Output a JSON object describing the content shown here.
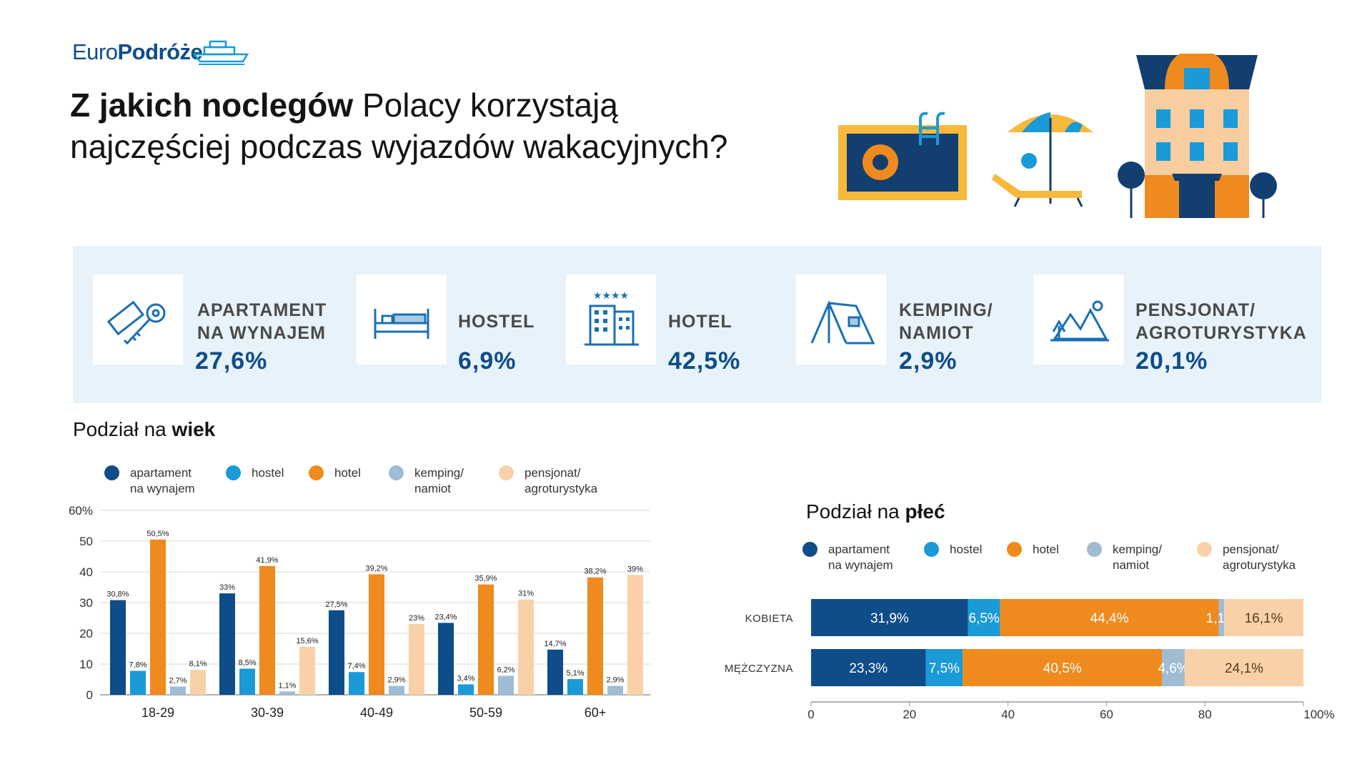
{
  "logo": {
    "part1": "Euro",
    "part2": "Podróże"
  },
  "headline": {
    "bold": "Z jakich noclegów",
    "rest_line1": " Polacy korzystają",
    "line2": "najczęściej podczas wyjazdów wakacyjnych?"
  },
  "summary": [
    {
      "label_line1": "APARTAMENT",
      "label_line2": "NA WYNAJEM",
      "value": "27,6%",
      "icon": "key-icon"
    },
    {
      "label_line1": "HOSTEL",
      "label_line2": "",
      "value": "6,9%",
      "icon": "bed-icon"
    },
    {
      "label_line1": "HOTEL",
      "label_line2": "",
      "value": "42,5%",
      "icon": "hotel-building-icon"
    },
    {
      "label_line1": "KEMPING/",
      "label_line2": "NAMIOT",
      "value": "2,9%",
      "icon": "tent-icon"
    },
    {
      "label_line1": "PENSJONAT/",
      "label_line2": "AGROTURYSTYKA",
      "value": "20,1%",
      "icon": "mountains-icon"
    }
  ],
  "age_section": {
    "title_prefix": "Podział na ",
    "title_bold": "wiek"
  },
  "gender_section": {
    "title_prefix": "Podział na ",
    "title_bold": "płeć"
  },
  "legend": [
    {
      "line1": "apartament",
      "line2": "na wynajem",
      "color": "#0f4c8a"
    },
    {
      "line1": "hostel",
      "line2": "",
      "color": "#1a9ad6"
    },
    {
      "line1": "hotel",
      "line2": "",
      "color": "#ef8a1e"
    },
    {
      "line1": "kemping/",
      "line2": "namiot",
      "color": "#9fbcd3"
    },
    {
      "line1": "pensjonat/",
      "line2": "agroturystyka",
      "color": "#f8d1a8"
    }
  ],
  "chart_data": [
    {
      "type": "bar",
      "title": "Podział na wiek",
      "categories": [
        "18-29",
        "30-39",
        "40-49",
        "50-59",
        "60+"
      ],
      "series": [
        {
          "name": "apartament na wynajem",
          "color": "#0f4c8a",
          "values": [
            30.8,
            33,
            27.5,
            23.4,
            14.7
          ],
          "labels": [
            "30,8%",
            "33%",
            "27,5%",
            "23,4%",
            "14,7%"
          ]
        },
        {
          "name": "hostel",
          "color": "#1a9ad6",
          "values": [
            7.8,
            8.5,
            7.4,
            3.4,
            5.1
          ],
          "labels": [
            "7,8%",
            "8,5%",
            "7,4%",
            "3,4%",
            "5,1%"
          ]
        },
        {
          "name": "hotel",
          "color": "#ef8a1e",
          "values": [
            50.5,
            41.9,
            39.2,
            35.9,
            38.2
          ],
          "labels": [
            "50,5%",
            "41,9%",
            "39,2%",
            "35,9%",
            "38,2%"
          ]
        },
        {
          "name": "kemping/namiot",
          "color": "#9fbcd3",
          "values": [
            2.7,
            1.1,
            2.9,
            6.2,
            2.9
          ],
          "labels": [
            "2,7%",
            "1,1%",
            "2,9%",
            "6,2%",
            "2,9%"
          ]
        },
        {
          "name": "pensjonat/agroturystyka",
          "color": "#f8d1a8",
          "values": [
            8.1,
            15.6,
            23,
            31,
            39
          ],
          "labels": [
            "8,1%",
            "15,6%",
            "23%",
            "31%",
            "39%"
          ]
        }
      ],
      "ylim": [
        0,
        60
      ],
      "yticks": [
        "0",
        "10",
        "20",
        "30",
        "40",
        "50",
        "60%"
      ],
      "grid": true
    },
    {
      "type": "bar",
      "orientation": "horizontal",
      "stacked": true,
      "title": "Podział na płeć",
      "categories": [
        "KOBIETA",
        "MĘŻCZYZNA"
      ],
      "series": [
        {
          "name": "apartament na wynajem",
          "color": "#0f4c8a",
          "values": [
            31.9,
            23.3
          ],
          "labels": [
            "31,9%",
            "23,3%"
          ]
        },
        {
          "name": "hostel",
          "color": "#1a9ad6",
          "values": [
            6.5,
            7.5
          ],
          "labels": [
            "6,5%",
            "7,5%"
          ]
        },
        {
          "name": "hotel",
          "color": "#ef8a1e",
          "values": [
            44.4,
            40.5
          ],
          "labels": [
            "44,4%",
            "40,5%"
          ]
        },
        {
          "name": "kemping/namiot",
          "color": "#9fbcd3",
          "values": [
            1.1,
            4.6
          ],
          "labels": [
            "1,1%",
            "4,6%"
          ]
        },
        {
          "name": "pensjonat/agroturystyka",
          "color": "#f8d1a8",
          "values": [
            16.1,
            24.1
          ],
          "labels": [
            "16,1%",
            "24,1%"
          ]
        }
      ],
      "xlim": [
        0,
        100
      ],
      "xticks": [
        "0",
        "20",
        "40",
        "60",
        "80",
        "100%"
      ]
    }
  ]
}
